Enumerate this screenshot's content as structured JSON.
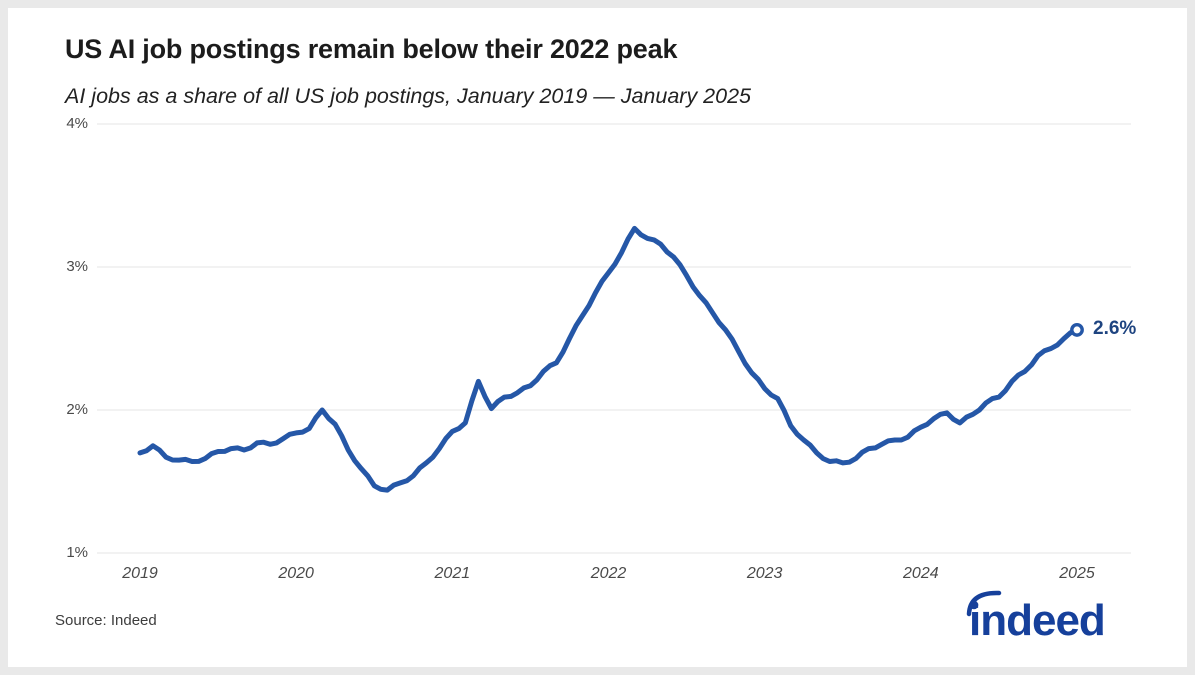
{
  "chart_data": {
    "type": "line",
    "title": "US AI job postings remain below their 2022 peak",
    "subtitle": "AI jobs as a share of all US job postings, January 2019 — January 2025",
    "series_name": "AI jobs as a share of all US job postings",
    "x_start": "Jan 2019",
    "x_end": "Jan 2025",
    "x_interval": "monthly",
    "x_tick_labels": [
      "2019",
      "2020",
      "2021",
      "2022",
      "2023",
      "2024",
      "2025"
    ],
    "y_tick_labels": [
      "4%",
      "3%",
      "2%",
      "1%"
    ],
    "y_tick_values": [
      4,
      3,
      2,
      1
    ],
    "ylim": [
      1,
      4
    ],
    "grid": "horizontal",
    "legend": "none",
    "line_color": "#2557a7",
    "grid_color": "#e4e4e4",
    "end_label": "2.6%",
    "end_label_color": "#1e4480",
    "end_value": 2.6,
    "values": [
      1.7,
      1.75,
      1.67,
      1.65,
      1.64,
      1.66,
      1.71,
      1.73,
      1.72,
      1.77,
      1.76,
      1.8,
      1.84,
      1.87,
      2.0,
      1.9,
      1.72,
      1.59,
      1.47,
      1.44,
      1.49,
      1.54,
      1.63,
      1.73,
      1.85,
      1.91,
      2.2,
      2.01,
      2.09,
      2.12,
      2.17,
      2.27,
      2.33,
      2.5,
      2.66,
      2.82,
      2.96,
      3.1,
      3.27,
      3.2,
      3.16,
      3.07,
      2.94,
      2.8,
      2.68,
      2.56,
      2.41,
      2.26,
      2.15,
      2.08,
      1.89,
      1.79,
      1.7,
      1.64,
      1.63,
      1.66,
      1.73,
      1.76,
      1.79,
      1.81,
      1.88,
      1.94,
      1.98,
      1.91,
      1.97,
      2.05,
      2.09,
      2.2,
      2.27,
      2.38,
      2.43,
      2.5,
      2.56
    ]
  },
  "footer": {
    "source": "Source: Indeed",
    "logo_text": "indeed",
    "logo_color": "#16409b"
  }
}
